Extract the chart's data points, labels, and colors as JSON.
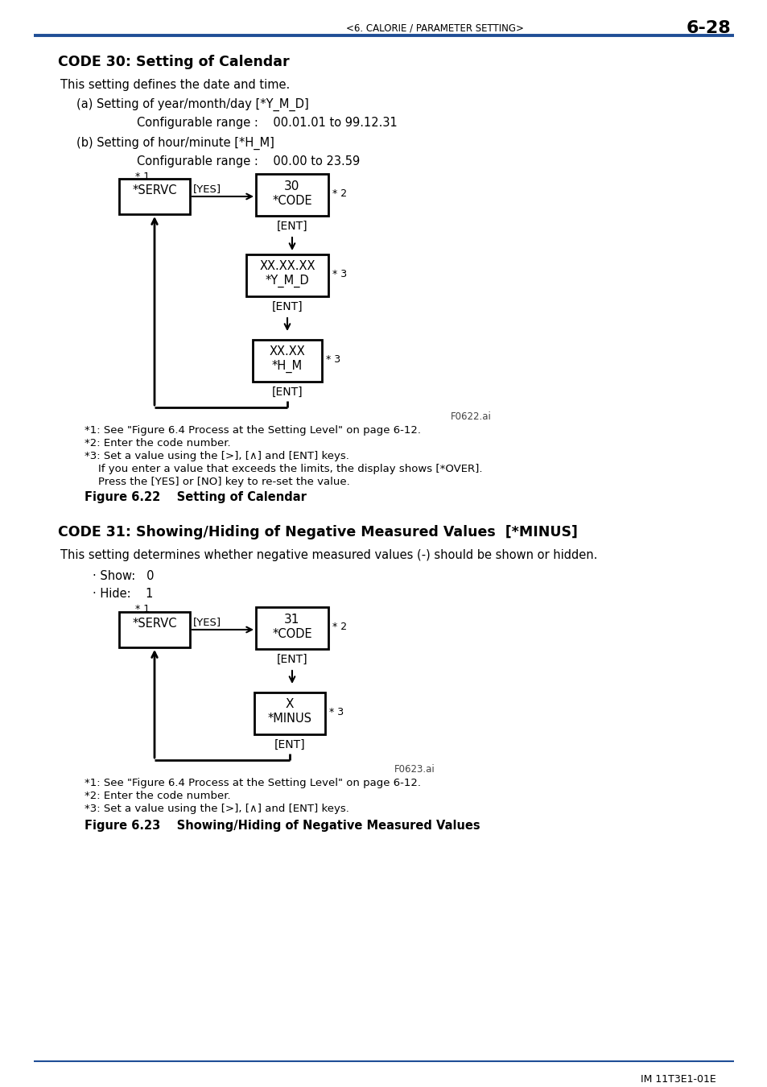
{
  "page_header_left": "<6. CALORIE / PARAMETER SETTING>",
  "page_header_right": "6-28",
  "header_line_color": "#1f4e96",
  "section1_title": "CODE 30: Setting of Calendar",
  "section1_body1": "This setting defines the date and time.",
  "section1_a": "(a) Setting of year/month/day [*Y_M_D]",
  "section1_a_range": "Configurable range :    00.01.01 to 99.12.31",
  "section1_b": "(b) Setting of hour/minute [*H_M]",
  "section1_b_range": "Configurable range :    00.00 to 23.59",
  "fig1_label": "F0622.ai",
  "fig1_caption": "Figure 6.22    Setting of Calendar",
  "note1_1": "*1: See \"Figure 6.4 Process at the Setting Level\" on page 6-12.",
  "note1_2": "*2: Enter the code number.",
  "note1_3a": "*3: Set a value using the [>], [∧] and [ENT] keys.",
  "note1_3b": "      If you enter a value that exceeds the limits, the display shows [*OVER].",
  "note1_3c": "      Press the [YES] or [NO] key to re-set the value.",
  "section2_title": "CODE 31: Showing/Hiding of Negative Measured Values  [*MINUS]",
  "section2_body1": "This setting determines whether negative measured values (-) should be shown or hidden.",
  "section2_show": "· Show:   0",
  "section2_hide": "· Hide:    1",
  "fig2_label": "F0623.ai",
  "fig2_caption": "Figure 6.23    Showing/Hiding of Negative Measured Values",
  "note2_1": "*1: See \"Figure 6.4 Process at the Setting Level\" on page 6-12.",
  "note2_2": "*2: Enter the code number.",
  "note2_3": "*3: Set a value using the [>], [∧] and [ENT] keys.",
  "footer_text": "IM 11T3E1-01E",
  "footer_line_color": "#1f4e96",
  "bg_color": "#ffffff",
  "text_color": "#000000"
}
